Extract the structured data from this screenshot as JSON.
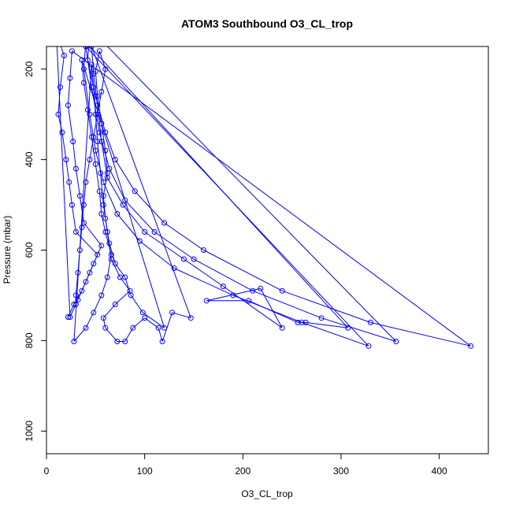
{
  "chart_data": {
    "type": "line",
    "title": "ATOM3 Southbound O3_CL_trop",
    "xlabel": "O3_CL_trop",
    "ylabel": "Pressure (mbar)",
    "xlim": [
      0,
      450
    ],
    "ylim": [
      1050,
      150
    ],
    "y_reversed": true,
    "xticks": [
      0,
      100,
      200,
      300,
      400
    ],
    "yticks": [
      200,
      400,
      600,
      800,
      1000
    ],
    "grid": false,
    "legend": "none",
    "series": [
      {
        "color": "#0000ff",
        "marker": "open-circle",
        "points": [
          [
            22,
            748
          ],
          [
            28,
            720
          ],
          [
            36,
            690
          ],
          [
            44,
            650
          ],
          [
            52,
            610
          ],
          [
            30,
            560
          ],
          [
            26,
            500
          ],
          [
            23,
            450
          ],
          [
            20,
            400
          ],
          [
            16,
            340
          ],
          [
            12,
            300
          ],
          [
            14,
            240
          ],
          [
            18,
            170
          ],
          [
            10,
            120
          ],
          [
            24,
            748
          ],
          [
            32,
            710
          ],
          [
            40,
            670
          ],
          [
            48,
            630
          ],
          [
            56,
            590
          ],
          [
            38,
            540
          ],
          [
            34,
            480
          ],
          [
            30,
            420
          ],
          [
            27,
            360
          ],
          [
            22,
            280
          ],
          [
            24,
            220
          ],
          [
            26,
            160
          ],
          [
            432,
            812
          ],
          [
            330,
            760
          ],
          [
            240,
            690
          ],
          [
            160,
            600
          ],
          [
            120,
            540
          ],
          [
            90,
            470
          ],
          [
            70,
            400
          ],
          [
            60,
            340
          ],
          [
            50,
            260
          ],
          [
            42,
            180
          ],
          [
            44,
            110
          ],
          [
            356,
            802
          ],
          [
            280,
            750
          ],
          [
            210,
            690
          ],
          [
            150,
            620
          ],
          [
            110,
            560
          ],
          [
            80,
            490
          ],
          [
            64,
            420
          ],
          [
            54,
            340
          ],
          [
            46,
            240
          ],
          [
            40,
            150
          ],
          [
            328,
            812
          ],
          [
            260,
            760
          ],
          [
            190,
            700
          ],
          [
            130,
            640
          ],
          [
            95,
            580
          ],
          [
            72,
            520
          ],
          [
            58,
            450
          ],
          [
            50,
            380
          ],
          [
            44,
            300
          ],
          [
            38,
            200
          ],
          [
            40,
            140
          ],
          [
            307,
            772
          ],
          [
            264,
            760
          ],
          [
            256,
            760
          ],
          [
            206,
            712
          ],
          [
            163,
            712
          ],
          [
            218,
            685
          ],
          [
            240,
            772
          ],
          [
            180,
            680
          ],
          [
            140,
            620
          ],
          [
            100,
            560
          ],
          [
            78,
            500
          ],
          [
            62,
            440
          ],
          [
            56,
            360
          ],
          [
            52,
            280
          ],
          [
            48,
            210
          ],
          [
            46,
            150
          ],
          [
            147,
            750
          ],
          [
            128,
            738
          ],
          [
            118,
            802
          ],
          [
            114,
            772
          ],
          [
            100,
            750
          ],
          [
            88,
            772
          ],
          [
            80,
            802
          ],
          [
            72,
            802
          ],
          [
            60,
            772
          ],
          [
            58,
            750
          ],
          [
            70,
            720
          ],
          [
            85,
            690
          ],
          [
            75,
            660
          ],
          [
            66,
            620
          ],
          [
            62,
            560
          ],
          [
            58,
            500
          ],
          [
            55,
            430
          ],
          [
            52,
            360
          ],
          [
            50,
            300
          ],
          [
            48,
            240
          ],
          [
            46,
            190
          ],
          [
            28,
            802
          ],
          [
            40,
            772
          ],
          [
            48,
            738
          ],
          [
            56,
            700
          ],
          [
            62,
            660
          ],
          [
            66,
            610
          ],
          [
            60,
            560
          ],
          [
            56,
            520
          ],
          [
            54,
            470
          ],
          [
            50,
            410
          ],
          [
            46,
            350
          ],
          [
            42,
            290
          ],
          [
            38,
            230
          ],
          [
            36,
            180
          ],
          [
            120,
            772
          ],
          [
            98,
            738
          ],
          [
            86,
            700
          ],
          [
            80,
            660
          ],
          [
            70,
            630
          ],
          [
            64,
            585
          ],
          [
            60,
            530
          ],
          [
            58,
            480
          ],
          [
            62,
            430
          ],
          [
            60,
            380
          ],
          [
            56,
            320
          ],
          [
            52,
            260
          ],
          [
            50,
            205
          ],
          [
            54,
            160
          ],
          [
            60,
            200
          ],
          [
            56,
            250
          ],
          [
            52,
            300
          ],
          [
            48,
            350
          ],
          [
            44,
            400
          ],
          [
            40,
            450
          ],
          [
            38,
            500
          ],
          [
            36,
            550
          ],
          [
            34,
            600
          ],
          [
            32,
            650
          ],
          [
            30,
            700
          ],
          [
            30,
            720
          ]
        ]
      }
    ]
  }
}
